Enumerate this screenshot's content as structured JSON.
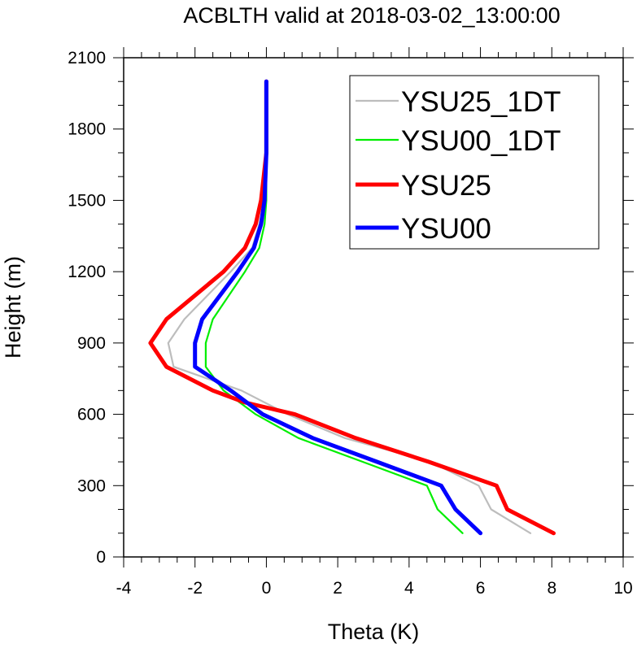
{
  "chart_data": {
    "type": "line",
    "title": "ACBLTH valid at 2018-03-02_13:00:00",
    "xlabel": "Theta (K)",
    "ylabel": "Height (m)",
    "xlim": [
      -4,
      10
    ],
    "ylim": [
      0,
      2100
    ],
    "x_ticks": [
      -4,
      -2,
      0,
      2,
      4,
      6,
      8,
      10
    ],
    "y_ticks": [
      0,
      300,
      600,
      900,
      1200,
      1500,
      1800,
      2100
    ],
    "legend_position": "top-right",
    "series": [
      {
        "name": "YSU25_1DT",
        "color": "#bdbdbd",
        "line_width": "thin",
        "points": [
          [
            7.4,
            100
          ],
          [
            6.3,
            200
          ],
          [
            5.95,
            300
          ],
          [
            4.6,
            400
          ],
          [
            2.2,
            500
          ],
          [
            0.6,
            600
          ],
          [
            -0.7,
            700
          ],
          [
            -2.6,
            800
          ],
          [
            -2.75,
            900
          ],
          [
            -2.3,
            1000
          ],
          [
            -1.0,
            1200
          ],
          [
            -0.4,
            1300
          ],
          [
            -0.2,
            1400
          ],
          [
            -0.05,
            1500
          ],
          [
            0.0,
            1700
          ],
          [
            0.0,
            2000
          ]
        ]
      },
      {
        "name": "YSU00_1DT",
        "color": "#00ee00",
        "line_width": "thin",
        "points": [
          [
            5.5,
            100
          ],
          [
            4.8,
            200
          ],
          [
            4.5,
            300
          ],
          [
            2.7,
            400
          ],
          [
            0.9,
            500
          ],
          [
            -0.3,
            600
          ],
          [
            -1.2,
            700
          ],
          [
            -1.7,
            800
          ],
          [
            -1.7,
            900
          ],
          [
            -1.5,
            1000
          ],
          [
            -0.6,
            1200
          ],
          [
            -0.2,
            1300
          ],
          [
            -0.05,
            1400
          ],
          [
            0.0,
            1500
          ],
          [
            0.0,
            1700
          ],
          [
            0.0,
            2000
          ]
        ]
      },
      {
        "name": "YSU25",
        "color": "#ff0000",
        "line_width": "thick",
        "points": [
          [
            8.05,
            100
          ],
          [
            6.75,
            200
          ],
          [
            6.45,
            300
          ],
          [
            4.55,
            400
          ],
          [
            2.5,
            500
          ],
          [
            0.8,
            600
          ],
          [
            -0.6,
            650
          ],
          [
            -1.5,
            700
          ],
          [
            -2.8,
            800
          ],
          [
            -3.25,
            900
          ],
          [
            -2.8,
            1000
          ],
          [
            -1.2,
            1200
          ],
          [
            -0.6,
            1300
          ],
          [
            -0.3,
            1400
          ],
          [
            -0.15,
            1500
          ],
          [
            0.0,
            1700
          ],
          [
            0.0,
            2000
          ]
        ]
      },
      {
        "name": "YSU00",
        "color": "#0000ff",
        "line_width": "thick",
        "points": [
          [
            6.0,
            100
          ],
          [
            5.3,
            200
          ],
          [
            4.9,
            300
          ],
          [
            3.1,
            400
          ],
          [
            1.3,
            500
          ],
          [
            -0.1,
            600
          ],
          [
            -1.0,
            700
          ],
          [
            -2.0,
            800
          ],
          [
            -2.0,
            900
          ],
          [
            -1.8,
            1000
          ],
          [
            -0.8,
            1200
          ],
          [
            -0.35,
            1300
          ],
          [
            -0.15,
            1400
          ],
          [
            -0.05,
            1500
          ],
          [
            0.0,
            1700
          ],
          [
            0.0,
            2000
          ]
        ]
      }
    ]
  }
}
